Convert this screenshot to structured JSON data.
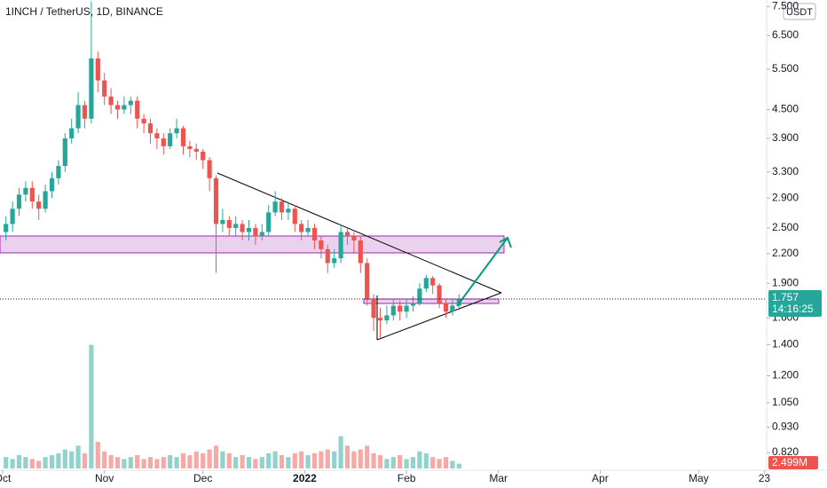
{
  "chart_data": {
    "type": "candlestick",
    "title": "1INCH / TetherUS, 1D, BINANCE",
    "currency_button": "USDT",
    "up_color": "#26a69a",
    "down_color": "#ef5350",
    "log_scale": true,
    "open": [
      2.45,
      2.55,
      2.75,
      2.95,
      3.05,
      2.85,
      2.75,
      3.0,
      3.2,
      3.4,
      3.9,
      4.1,
      4.6,
      4.3,
      5.8,
      5.2,
      4.8,
      4.6,
      4.5,
      4.6,
      4.7,
      4.3,
      4.2,
      4.0,
      3.9,
      3.75,
      4.0,
      4.1,
      3.75,
      3.7,
      3.65,
      3.5,
      3.2,
      2.55,
      2.6,
      2.5,
      2.55,
      2.45,
      2.5,
      2.4,
      2.45,
      2.7,
      2.85,
      2.7,
      2.75,
      2.55,
      2.45,
      2.5,
      2.35,
      2.25,
      2.1,
      2.15,
      2.45,
      2.4,
      2.35,
      2.1,
      1.75,
      1.6,
      1.58,
      1.62,
      1.7,
      1.65,
      1.7,
      1.72,
      1.85,
      1.95,
      1.88,
      1.72,
      1.65,
      1.7
    ],
    "high": [
      2.65,
      2.85,
      3.05,
      3.15,
      3.15,
      2.95,
      3.1,
      3.3,
      3.5,
      4.0,
      4.3,
      4.9,
      4.7,
      7.7,
      6.0,
      5.4,
      5.0,
      4.7,
      4.8,
      4.8,
      4.8,
      4.4,
      4.3,
      4.1,
      4.0,
      4.1,
      4.3,
      4.15,
      3.85,
      3.8,
      3.7,
      3.55,
      3.25,
      2.75,
      2.65,
      2.65,
      2.6,
      2.6,
      2.55,
      2.55,
      2.8,
      3.0,
      2.9,
      2.85,
      2.8,
      2.6,
      2.6,
      2.55,
      2.4,
      2.3,
      2.25,
      2.55,
      2.5,
      2.45,
      2.4,
      2.15,
      1.8,
      1.68,
      1.7,
      1.75,
      1.74,
      1.75,
      1.78,
      1.9,
      1.98,
      1.97,
      1.9,
      1.75,
      1.75,
      1.8
    ],
    "low": [
      2.35,
      2.45,
      2.65,
      2.85,
      2.75,
      2.6,
      2.7,
      2.9,
      3.1,
      3.3,
      3.8,
      4.0,
      4.1,
      4.2,
      4.9,
      4.6,
      4.4,
      4.3,
      4.4,
      4.4,
      4.1,
      4.0,
      3.8,
      3.7,
      3.6,
      3.7,
      3.9,
      3.6,
      3.55,
      3.5,
      3.35,
      3.0,
      2.0,
      2.45,
      2.4,
      2.4,
      2.35,
      2.35,
      2.3,
      2.35,
      2.4,
      2.65,
      2.6,
      2.6,
      2.45,
      2.35,
      2.4,
      2.25,
      2.15,
      2.0,
      2.05,
      2.1,
      2.3,
      2.2,
      2.0,
      1.7,
      1.5,
      1.45,
      1.55,
      1.58,
      1.58,
      1.6,
      1.65,
      1.7,
      1.82,
      1.8,
      1.68,
      1.6,
      1.62,
      1.68
    ],
    "close": [
      2.55,
      2.75,
      2.95,
      3.05,
      2.85,
      2.75,
      3.0,
      3.2,
      3.4,
      3.9,
      4.1,
      4.6,
      4.3,
      5.8,
      5.2,
      4.8,
      4.6,
      4.5,
      4.6,
      4.7,
      4.3,
      4.2,
      4.0,
      3.9,
      3.75,
      4.0,
      4.1,
      3.75,
      3.7,
      3.65,
      3.5,
      3.2,
      2.55,
      2.6,
      2.5,
      2.55,
      2.45,
      2.5,
      2.4,
      2.45,
      2.7,
      2.85,
      2.7,
      2.75,
      2.55,
      2.45,
      2.5,
      2.35,
      2.25,
      2.1,
      2.15,
      2.45,
      2.4,
      2.35,
      2.1,
      1.75,
      1.6,
      1.58,
      1.62,
      1.7,
      1.65,
      1.7,
      1.72,
      1.85,
      1.95,
      1.88,
      1.72,
      1.65,
      1.7,
      1.757
    ],
    "volume": [
      6,
      5,
      7,
      6,
      5,
      4,
      6,
      7,
      8,
      10,
      9,
      12,
      8,
      65,
      14,
      9,
      7,
      6,
      5,
      6,
      7,
      5,
      6,
      5,
      6,
      7,
      6,
      8,
      7,
      9,
      8,
      10,
      12,
      9,
      8,
      6,
      7,
      6,
      5,
      6,
      8,
      9,
      7,
      6,
      8,
      9,
      7,
      8,
      9,
      10,
      9,
      17,
      12,
      9,
      10,
      12,
      8,
      7,
      5,
      6,
      7,
      5,
      6,
      9,
      8,
      6,
      5,
      6,
      4,
      2.499
    ],
    "vlim": [
      0,
      70
    ],
    "ylim": [
      0.751,
      7.75
    ],
    "yticks": [
      {
        "value": 0.82,
        "label": "0.820"
      },
      {
        "value": 0.93,
        "label": "0.930"
      },
      {
        "value": 1.05,
        "label": "1.050"
      },
      {
        "value": 1.2,
        "label": "1.200"
      },
      {
        "value": 1.4,
        "label": "1.400"
      },
      {
        "value": 1.6,
        "label": "1.600"
      },
      {
        "value": 1.9,
        "label": "1.900"
      },
      {
        "value": 2.2,
        "label": "2.200"
      },
      {
        "value": 2.5,
        "label": "2.500"
      },
      {
        "value": 2.9,
        "label": "2.900"
      },
      {
        "value": 3.3,
        "label": "3.300"
      },
      {
        "value": 3.9,
        "label": "3.900"
      },
      {
        "value": 4.5,
        "label": "4.500"
      },
      {
        "value": 5.5,
        "label": "5.500"
      },
      {
        "value": 6.5,
        "label": "6.500"
      },
      {
        "value": 7.5,
        "label": "7.500"
      }
    ],
    "xticks": [
      {
        "value": 0,
        "label": "Oct"
      },
      {
        "value": 31,
        "label": "Nov"
      },
      {
        "value": 61,
        "label": "Dec"
      },
      {
        "value": 92,
        "label": "2022"
      },
      {
        "value": 123,
        "label": "Feb"
      },
      {
        "value": 151,
        "label": "Mar"
      },
      {
        "value": 182,
        "label": "Apr"
      },
      {
        "value": 212,
        "label": "May"
      },
      {
        "value": 232,
        "label": "23"
      }
    ],
    "last_price": 1.757,
    "countdown": "14:16:25",
    "last_volume_label": "2.499M"
  }
}
